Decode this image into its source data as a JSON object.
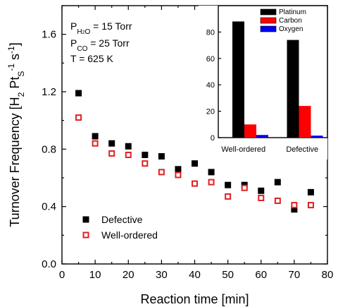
{
  "chart_data": [
    {
      "type": "scatter",
      "xlabel": "Reaction time [min]",
      "ylabel_parts": [
        "Turnover Frequency [H",
        "2",
        " Pt",
        "S",
        "-1",
        " s",
        "-1",
        "]"
      ],
      "xlim": [
        0,
        80
      ],
      "ylim": [
        0.0,
        1.8
      ],
      "x_ticks": [
        "0",
        "10",
        "20",
        "30",
        "40",
        "50",
        "60",
        "70",
        "80"
      ],
      "y_ticks": [
        "0.0",
        "0.4",
        "0.8",
        "1.2",
        "1.6"
      ],
      "conditions": {
        "p_h2o": {
          "p": "P",
          "sub": "H",
          "sub2": "2",
          "sub3": "O",
          "rest": " = 15 Torr"
        },
        "p_co": {
          "p": "P",
          "sub": "CO",
          "rest": " = 25 Torr"
        },
        "temp": "T = 625 K"
      },
      "series": [
        {
          "name": "Defective",
          "marker": "filled-square",
          "color": "#000000",
          "x": [
            5,
            10,
            15,
            20,
            25,
            30,
            35,
            40,
            45,
            50,
            55,
            60,
            65,
            70,
            75
          ],
          "y": [
            1.19,
            0.89,
            0.84,
            0.82,
            0.76,
            0.75,
            0.66,
            0.7,
            0.64,
            0.55,
            0.55,
            0.51,
            0.57,
            0.38,
            0.5
          ]
        },
        {
          "name": "Well-ordered",
          "marker": "open-square",
          "color": "#e02020",
          "x": [
            5,
            10,
            15,
            20,
            25,
            30,
            35,
            40,
            45,
            50,
            55,
            60,
            65,
            70,
            75
          ],
          "y": [
            1.02,
            0.84,
            0.77,
            0.76,
            0.7,
            0.64,
            0.62,
            0.56,
            0.57,
            0.47,
            0.53,
            0.46,
            0.44,
            0.41,
            0.41
          ]
        }
      ]
    },
    {
      "type": "bar",
      "categories": [
        "Well-ordered",
        "Defective"
      ],
      "ylim": [
        0,
        100
      ],
      "y_ticks": [
        "0",
        "20",
        "40",
        "60",
        "80"
      ],
      "series": [
        {
          "name": "Platinum",
          "color": "#000000",
          "values": [
            88,
            74
          ]
        },
        {
          "name": "Carbon",
          "color": "#ff0000",
          "values": [
            10,
            24
          ]
        },
        {
          "name": "Oxygen",
          "color": "#0000ee",
          "values": [
            2,
            1.5
          ]
        }
      ]
    }
  ]
}
